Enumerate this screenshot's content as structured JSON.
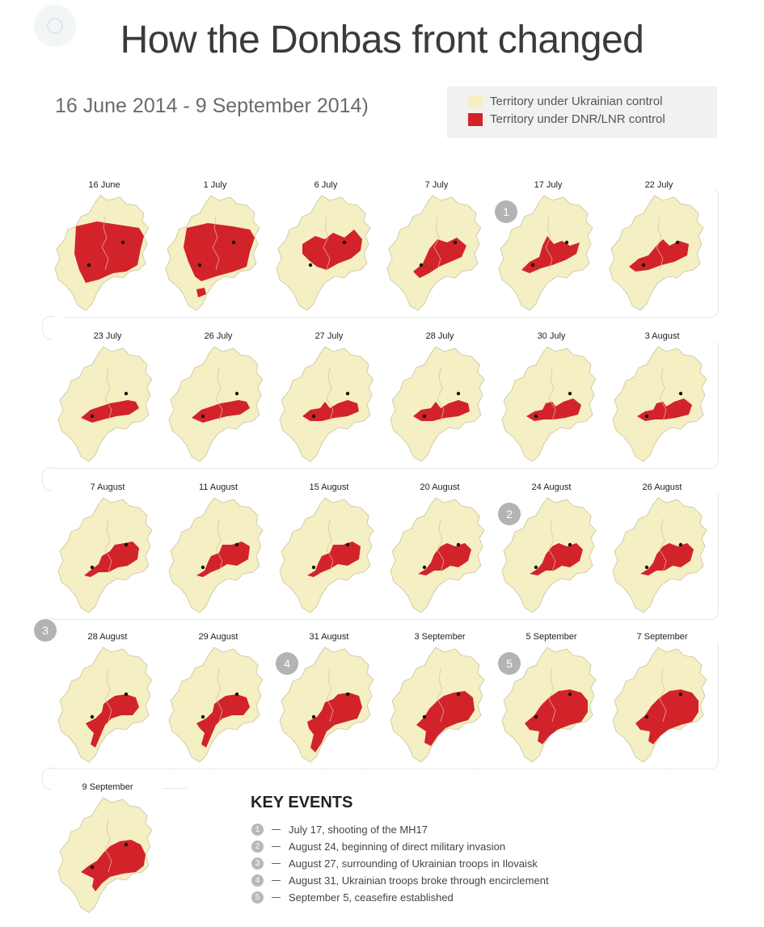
{
  "title": "How the Donbas front changed",
  "date_range": "16 June 2014 - 9 September 2014)",
  "colors": {
    "ukrainian": "#f5efc4",
    "separatist": "#d2232a",
    "boundary": "#c9c2a0",
    "badge": "#b3b3b3"
  },
  "legend": [
    {
      "label": "Territory under Ukrainian  control",
      "color": "#f5efc4"
    },
    {
      "label": "Territory under DNR/LNR control",
      "color": "#d2232a"
    }
  ],
  "snapshots": [
    {
      "date": "16 June",
      "shape": 0
    },
    {
      "date": "1 July",
      "shape": 1
    },
    {
      "date": "6 July",
      "shape": 2
    },
    {
      "date": "7 July",
      "shape": 3
    },
    {
      "date": "17 July",
      "shape": 4,
      "event": "1"
    },
    {
      "date": "22 July",
      "shape": 5
    },
    {
      "date": "23 July",
      "shape": 6
    },
    {
      "date": "26 July",
      "shape": 6
    },
    {
      "date": "27 July",
      "shape": 7
    },
    {
      "date": "28 July",
      "shape": 7
    },
    {
      "date": "30 July",
      "shape": 8
    },
    {
      "date": "3 August",
      "shape": 8
    },
    {
      "date": "7 August",
      "shape": 9
    },
    {
      "date": "11 August",
      "shape": 10
    },
    {
      "date": "15 August",
      "shape": 10
    },
    {
      "date": "20 August",
      "shape": 11
    },
    {
      "date": "24  August",
      "shape": 11,
      "event": "2"
    },
    {
      "date": "26 August",
      "shape": 11
    },
    {
      "date": "28 August",
      "shape": 12
    },
    {
      "date": "29 August",
      "shape": 12
    },
    {
      "date": "31 August",
      "shape": 13,
      "event": "4"
    },
    {
      "date": "3 September",
      "shape": 14
    },
    {
      "date": "5 September",
      "shape": 15,
      "event": "5"
    },
    {
      "date": "7 September",
      "shape": 15
    },
    {
      "date": "9 September",
      "shape": 16
    }
  ],
  "row_event_3": "3",
  "key_events": {
    "title": "KEY EVENTS",
    "items": [
      {
        "num": "1",
        "text": "July 17, shooting of the MH17"
      },
      {
        "num": "2",
        "text": "August 24, beginning of direct military invasion"
      },
      {
        "num": "3",
        "text": "August 27, surrounding of Ukrainian troops in Ilovaisk"
      },
      {
        "num": "4",
        "text": "August 31, Ukrainian troops broke through encirclement"
      },
      {
        "num": "5",
        "text": "September 5, ceasefire established"
      }
    ]
  }
}
